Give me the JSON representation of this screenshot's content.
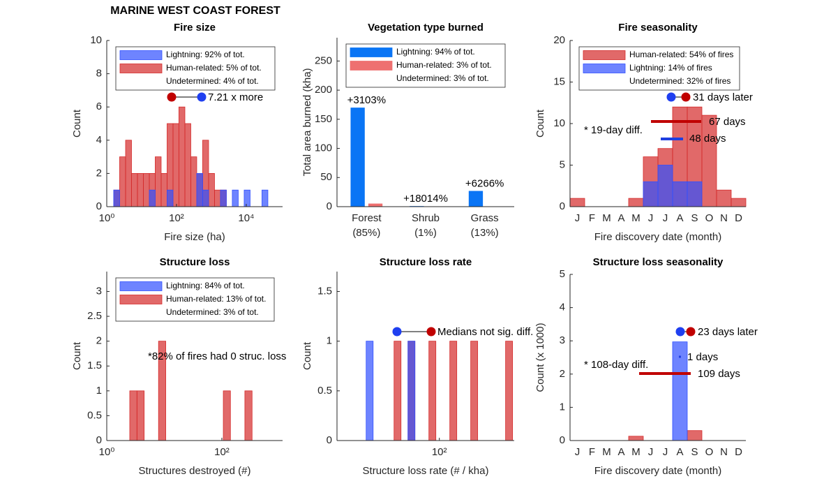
{
  "title": "MARINE WEST COAST FOREST",
  "chart_data": [
    {
      "type": "histogram",
      "title": "Fire size",
      "xlabel": "Fire size (ha)",
      "ylabel": "Count",
      "xscale": "log",
      "xlim": [
        1,
        110000
      ],
      "xticks": [
        {
          "value": 1,
          "label": "10⁰"
        },
        {
          "value": 100,
          "label": "10²"
        },
        {
          "value": 10000,
          "label": "10⁴"
        }
      ],
      "ylim": [
        0,
        10
      ],
      "yticks": [
        0,
        2,
        4,
        6,
        8,
        10
      ],
      "bins": [
        1.58,
        2.34,
        3.47,
        5.13,
        7.59,
        11.2,
        16.6,
        24.5,
        36.3,
        53.7,
        79.4,
        117,
        174,
        257,
        380,
        562,
        832,
        1230,
        1820,
        2690,
        3980,
        5890,
        8710,
        12900,
        19100,
        28200,
        41700,
        61700,
        91200
      ],
      "series": [
        {
          "name": "Lightning: 92% of tot.",
          "color": "#3050ff",
          "values": [
            1,
            0,
            0,
            0,
            0,
            0,
            1,
            0,
            0,
            1,
            0,
            0,
            0,
            0,
            2,
            1,
            0,
            0,
            1,
            0,
            1,
            0,
            1,
            0,
            0,
            1,
            0,
            0
          ]
        },
        {
          "name": "Human-related: 5% of tot.",
          "color": "#d42a2a",
          "values": [
            1,
            3,
            4,
            2,
            2,
            2,
            2,
            3,
            2,
            5,
            5,
            6,
            5,
            3,
            2,
            4,
            2,
            1,
            1,
            0,
            0,
            0,
            0,
            0,
            0,
            0,
            0,
            0
          ]
        }
      ],
      "legend_note": "Undetermined: 4% of tot.",
      "legend": "upper left",
      "annotations": [
        "7.21 x more"
      ]
    },
    {
      "type": "bar",
      "barmode": "group",
      "title": "Vegetation type burned",
      "ylabel": "Total area burned (kha)",
      "categories": [
        "Forest",
        "Shrub",
        "Grass"
      ],
      "category_notes": [
        "(85%)",
        "(1%)",
        "(13%)"
      ],
      "ylim": [
        0,
        290
      ],
      "yticks": [
        0,
        50,
        100,
        150,
        200,
        250
      ],
      "series": [
        {
          "name": "Lightning: 94% of tot.",
          "color": "#0a75f5",
          "values": [
            170,
            1,
            27
          ]
        },
        {
          "name": "Human-related: 3% of tot.",
          "color": "#ee7070",
          "values": [
            5.3,
            0.005,
            0.4
          ]
        }
      ],
      "difference_labels": [
        "+3103%",
        "+18014%",
        "+6266%"
      ],
      "legend_note": "Undetermined: 3% of tot.",
      "legend": "upper left"
    },
    {
      "type": "bar",
      "barmode": "overlay",
      "title": "Fire seasonality",
      "xlabel": "Fire discovery date (month)",
      "ylabel": "Count",
      "categories": [
        "J",
        "F",
        "M",
        "A",
        "M",
        "J",
        "J",
        "A",
        "S",
        "O",
        "N",
        "D"
      ],
      "ylim": [
        0,
        20
      ],
      "yticks": [
        0,
        5,
        10,
        15,
        20
      ],
      "series": [
        {
          "name": "Human-related: 54% of fires",
          "color": "#d42a2a",
          "values": [
            1,
            0,
            0,
            0,
            1,
            6,
            7,
            12,
            12,
            11,
            2,
            1
          ]
        },
        {
          "name": "Lightning: 14% of fires",
          "color": "#3050ff",
          "values": [
            0,
            0,
            0,
            0,
            0,
            3,
            5,
            3,
            3,
            0,
            0,
            0
          ]
        }
      ],
      "legend_note": "Undetermined: 32% of fires",
      "legend": "upper left",
      "annotations": [
        "31 days later",
        "67 days",
        "48 days",
        "* 19-day diff."
      ]
    },
    {
      "type": "histogram",
      "title": "Structure loss",
      "xlabel": "Structures destroyed (#)",
      "ylabel": "Count",
      "xscale": "log",
      "xlim": [
        1,
        1135
      ],
      "xticks": [
        {
          "value": 1,
          "label": "10⁰"
        },
        {
          "value": 100,
          "label": "10²"
        }
      ],
      "ylim": [
        0,
        3.4
      ],
      "yticks": [
        0,
        0.5,
        1,
        1.5,
        2,
        2.5,
        3
      ],
      "bins": [
        2.51,
        3.35,
        4.47,
        5.96,
        7.94,
        10.6,
        14.1,
        18.8,
        25.1,
        33.5,
        44.7,
        59.6,
        79.4,
        106,
        141,
        188,
        251,
        335,
        447,
        596,
        794,
        1060
      ],
      "series": [
        {
          "name": "Lightning: 84% of tot.",
          "color": "#3050ff",
          "values": [
            0,
            0,
            0,
            0,
            0,
            0,
            0,
            0,
            0,
            0,
            0,
            0,
            0,
            0,
            0,
            0,
            0,
            0,
            0,
            0,
            0
          ]
        },
        {
          "name": "Human-related: 13% of tot.",
          "color": "#d42a2a",
          "values": [
            1,
            1,
            0,
            0,
            2,
            0,
            0,
            0,
            0,
            0,
            0,
            0,
            0,
            1,
            0,
            0,
            1,
            0,
            0,
            0,
            0
          ]
        }
      ],
      "legend_note": "Undetermined: 3% of tot.",
      "legend": "upper left",
      "annotations": [
        "*82% of fires had 0 struc. loss"
      ]
    },
    {
      "type": "histogram",
      "title": "Structure loss rate",
      "xlabel": "Structure loss rate (# / kha)",
      "ylabel": "Count",
      "xscale": "log",
      "xlim": [
        10.5,
        520
      ],
      "xticks": [
        {
          "value": 100,
          "label": "10²"
        }
      ],
      "ylim": [
        0,
        1.7
      ],
      "yticks": [
        0,
        0.5,
        1,
        1.5
      ],
      "bins": [
        19.95,
        23.27,
        27.12,
        31.62,
        36.87,
        42.99,
        50.12,
        58.44,
        68.13,
        79.43,
        92.61,
        107.98,
        125.9,
        146.8,
        171.1,
        199.5,
        232.6,
        271.2,
        316.2,
        368.7,
        429.9,
        501.2
      ],
      "series": [
        {
          "color": "#3050ff",
          "values": [
            1,
            0,
            0,
            0,
            0,
            0,
            1,
            0,
            0,
            0,
            0,
            0,
            0,
            0,
            0,
            0,
            0,
            0,
            0,
            0,
            0
          ]
        },
        {
          "color": "#d42a2a",
          "values": [
            0,
            0,
            0,
            0,
            1,
            0,
            1,
            0,
            0,
            1,
            0,
            0,
            1,
            0,
            0,
            1,
            0,
            0,
            0,
            0,
            1
          ]
        }
      ],
      "annotations": [
        "Medians not sig. diff."
      ]
    },
    {
      "type": "bar",
      "barmode": "overlay",
      "title": "Structure loss seasonality",
      "xlabel": "Fire discovery date (month)",
      "ylabel": "Count (x 1000)",
      "categories": [
        "J",
        "F",
        "M",
        "A",
        "M",
        "J",
        "J",
        "A",
        "S",
        "O",
        "N",
        "D"
      ],
      "ylim": [
        0,
        5
      ],
      "yticks": [
        0,
        1,
        2,
        3,
        4,
        5
      ],
      "series": [
        {
          "color": "#d42a2a",
          "values": [
            0,
            0,
            0,
            0,
            0.13,
            0,
            0,
            0,
            0.3,
            0,
            0,
            0
          ]
        },
        {
          "color": "#3050ff",
          "values": [
            0,
            0,
            0,
            0,
            0,
            0,
            0,
            2.97,
            0,
            0,
            0,
            0
          ]
        }
      ],
      "annotations": [
        "23 days later",
        "1 days",
        "109 days",
        "* 108-day diff."
      ]
    }
  ]
}
